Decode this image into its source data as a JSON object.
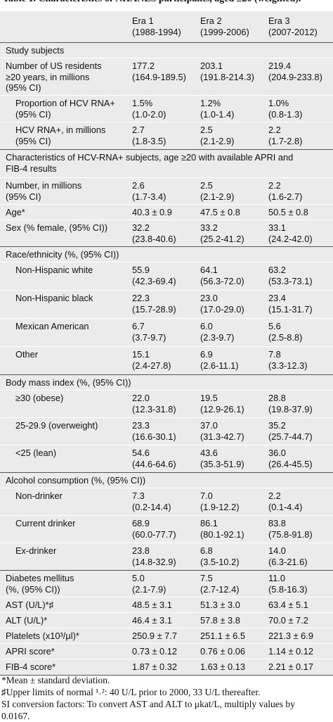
{
  "caption": "Table 1. Characteristics of NHANES participants, aged ≥20 (weighted).",
  "header": {
    "era1": {
      "name": "Era 1",
      "years": "(1988-1994)"
    },
    "era2": {
      "name": "Era 2",
      "years": "(1999-2006)"
    },
    "era3": {
      "name": "Era 3",
      "years": "(2007-2012)"
    }
  },
  "sections": {
    "study_subjects": "Study subjects",
    "hcv_characteristics": [
      "Characteristics of HCV-RNA+ subjects, age ≥20 with available APRI and",
      "FIB-4 results"
    ],
    "race": "Race/ethnicity (%, (95% CI))",
    "bmi": "Body mass index (%, (95% CI))",
    "alcohol": "Alcohol consumption (%, (95% CI))"
  },
  "rows": {
    "us_residents": {
      "label": [
        "Number of US residents",
        "≥20 years, in millions",
        "(95% CI)"
      ],
      "e1": [
        "177.2",
        "(164.9-189.5)"
      ],
      "e2": [
        "203.1",
        "(191.8-214.3)"
      ],
      "e3": [
        "219.4",
        "(204.9-233.8)"
      ]
    },
    "prop_hcv": {
      "label": [
        "Proportion of HCV RNA+",
        "(95% CI)"
      ],
      "e1": [
        "1.5%",
        "(1.0-2.0)"
      ],
      "e2": [
        "1.2%",
        "(1.0-1.4)"
      ],
      "e3": [
        "1.0%",
        "(0.8-1.3)"
      ]
    },
    "hcv_millions": {
      "label": [
        "HCV RNA+, in millions",
        "(95% CI)"
      ],
      "e1": [
        "2.7",
        "(1.8-3.5)"
      ],
      "e2": [
        "2.5",
        "(2.1-2.9)"
      ],
      "e3": [
        "2.2",
        "(1.7-2.8)"
      ]
    },
    "number_millions": {
      "label": [
        "Number, in millions",
        "(95% CI)"
      ],
      "e1": [
        "2.6",
        "(1.7-3.4)"
      ],
      "e2": [
        "2.5",
        "(2.1-2.9)"
      ],
      "e3": [
        "2.2",
        "(1.6-2.7)"
      ]
    },
    "age": {
      "label": [
        "Age*"
      ],
      "e1": [
        "40.3 ± 0.9"
      ],
      "e2": [
        "47.5 ± 0.8"
      ],
      "e3": [
        "50.5 ± 0.8"
      ]
    },
    "sex": {
      "label": [
        "Sex (% female, (95% CI))"
      ],
      "e1": [
        "32.2",
        "(23.8-40.6)"
      ],
      "e2": [
        "33.2",
        "(25.2-41.2)"
      ],
      "e3": [
        "33.1",
        "(24.2-42.0)"
      ]
    },
    "nh_white": {
      "label": [
        "Non-Hispanic white"
      ],
      "e1": [
        "55.9",
        "(42.3-69.4)"
      ],
      "e2": [
        "64.1",
        "(56.3-72.0)"
      ],
      "e3": [
        "63.2",
        "(53.3-73.1)"
      ]
    },
    "nh_black": {
      "label": [
        "Non-Hispanic black"
      ],
      "e1": [
        "22.3",
        "(15.7-28.9)"
      ],
      "e2": [
        "23.0",
        "(17.0-29.0)"
      ],
      "e3": [
        "23.4",
        "(15.1-31.7)"
      ]
    },
    "mexican": {
      "label": [
        "Mexican American"
      ],
      "e1": [
        "6.7",
        "(3.7-9.7)"
      ],
      "e2": [
        "6.0",
        "(2.3-9.7)"
      ],
      "e3": [
        "5.6",
        "(2.5-8.8)"
      ]
    },
    "other": {
      "label": [
        "Other"
      ],
      "e1": [
        "15.1",
        "(2.4-27.8)"
      ],
      "e2": [
        "6.9",
        "(2.6-11.1)"
      ],
      "e3": [
        "7.8",
        "(3.3-12.3)"
      ]
    },
    "obese": {
      "label": [
        "≥30 (obese)"
      ],
      "e1": [
        "22.0",
        "(12.3-31.8)"
      ],
      "e2": [
        "19.5",
        "(12.9-26.1)"
      ],
      "e3": [
        "28.8",
        "(19.8-37.9)"
      ]
    },
    "overweight": {
      "label": [
        "25-29.9 (overweight)"
      ],
      "e1": [
        "23.3",
        "(16.6-30.1)"
      ],
      "e2": [
        "37.0",
        "(31.3-42.7)"
      ],
      "e3": [
        "35.2",
        "(25.7-44.7)"
      ]
    },
    "lean": {
      "label": [
        "<25 (lean)"
      ],
      "e1": [
        "54.6",
        "(44.6-64.6)"
      ],
      "e2": [
        "43.6",
        "(35.3-51.9)"
      ],
      "e3": [
        "36.0",
        "(26.4-45.5)"
      ]
    },
    "non_drinker": {
      "label": [
        "Non-drinker"
      ],
      "e1": [
        "7.3",
        "(0.2-14.4)"
      ],
      "e2": [
        "7.0",
        "(1.9-12.2)"
      ],
      "e3": [
        "2.2",
        "(0.1-4.4)"
      ]
    },
    "current_drinker": {
      "label": [
        "Current drinker"
      ],
      "e1": [
        "68.9",
        "(60.0-77.7)"
      ],
      "e2": [
        "86.1",
        "(80.1-92.1)"
      ],
      "e3": [
        "83.8",
        "(75.8-91.8)"
      ]
    },
    "ex_drinker": {
      "label": [
        "Ex-drinker"
      ],
      "e1": [
        "23.8",
        "(14.8-32.9)"
      ],
      "e2": [
        "6.8",
        "(3.5-10.2)"
      ],
      "e3": [
        "14.0",
        "(6.3-21.6)"
      ]
    },
    "diabetes": {
      "label": [
        "Diabetes mellitus",
        "(%, (95% CI))"
      ],
      "e1": [
        "5.0",
        "(2.1-7.9)"
      ],
      "e2": [
        "7.5",
        "(2.7-12.4)"
      ],
      "e3": [
        "11.0",
        "(5.8-16.3)"
      ]
    },
    "ast": {
      "label": [
        "AST (U/L)*♯"
      ],
      "e1": [
        "48.5 ± 3.1"
      ],
      "e2": [
        "51.3 ± 3.0"
      ],
      "e3": [
        "63.4 ± 5.1"
      ]
    },
    "alt": {
      "label": [
        "ALT (U/L)*"
      ],
      "e1": [
        "46.4 ± 3.1"
      ],
      "e2": [
        "57.8 ± 3.8"
      ],
      "e3": [
        "70.0 ± 7.2"
      ]
    },
    "platelets": {
      "label": [
        "Platelets (x10³/μl)*"
      ],
      "e1": [
        "250.9 ± 7.7"
      ],
      "e2": [
        "251.1 ± 6.5"
      ],
      "e3": [
        "221.3 ± 6.9"
      ]
    },
    "apri": {
      "label": [
        "APRI score*"
      ],
      "e1": [
        "0.73 ± 0.12"
      ],
      "e2": [
        "0.76 ± 0.06"
      ],
      "e3": [
        "1.14 ± 0.12"
      ]
    },
    "fib4": {
      "label": [
        "FIB-4 score*"
      ],
      "e1": [
        "1.87 ± 0.32"
      ],
      "e2": [
        "1.63 ± 0.13"
      ],
      "e3": [
        "2.21 ± 0.17"
      ]
    }
  },
  "footnotes": [
    "*Mean ± standard deviation.",
    "♯Upper limits of normal ¹˒²: 40 U/L prior to 2000, 33 U/L thereafter.",
    "SI conversion factors: To convert AST and ALT to μkat/L, multiply values by",
    "0.0167."
  ]
}
